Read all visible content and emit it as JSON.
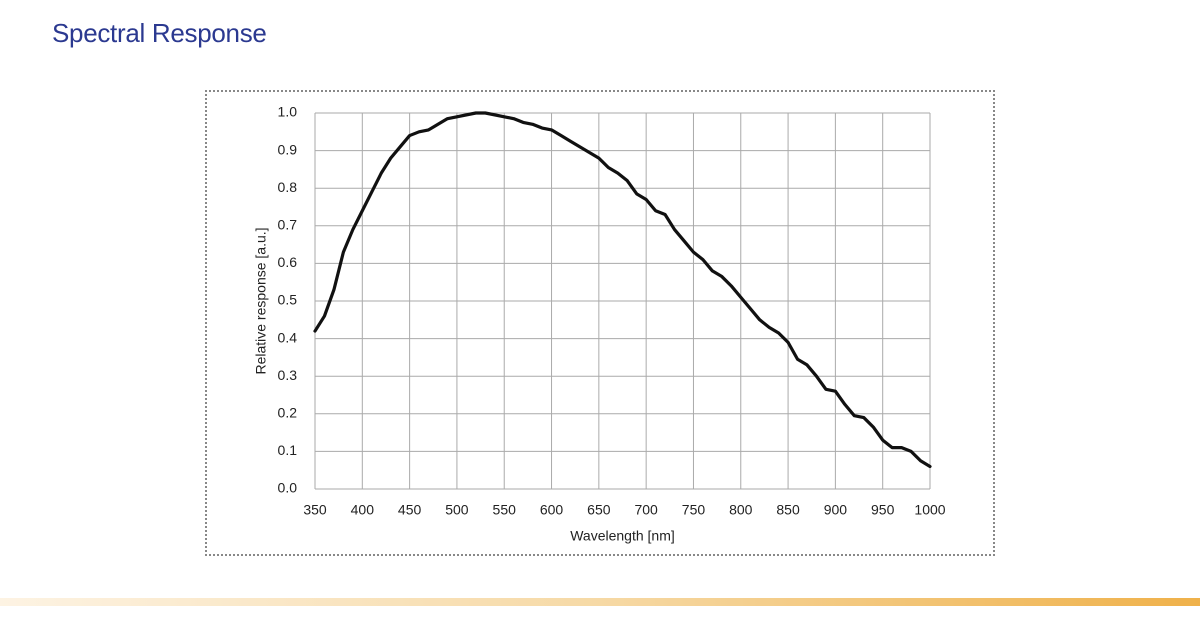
{
  "header": {
    "title": "Spectral Response"
  },
  "chart_data": {
    "type": "line",
    "x_label": "Wavelength [nm]",
    "y_label": "Relative response [a.u.]",
    "x": [
      350,
      360,
      370,
      380,
      390,
      400,
      410,
      420,
      430,
      440,
      450,
      460,
      470,
      480,
      490,
      500,
      510,
      520,
      530,
      540,
      550,
      560,
      570,
      580,
      590,
      600,
      610,
      620,
      630,
      640,
      650,
      660,
      670,
      680,
      690,
      700,
      710,
      720,
      730,
      740,
      750,
      760,
      770,
      780,
      790,
      800,
      810,
      820,
      830,
      840,
      850,
      860,
      870,
      880,
      890,
      900,
      910,
      920,
      930,
      940,
      950,
      960,
      970,
      980,
      990,
      1000
    ],
    "series": [
      {
        "name": null,
        "color": "#111111",
        "values": [
          0.42,
          0.46,
          0.53,
          0.63,
          0.69,
          0.74,
          0.79,
          0.84,
          0.88,
          0.91,
          0.94,
          0.95,
          0.955,
          0.97,
          0.985,
          0.99,
          0.995,
          1.0,
          1.0,
          0.995,
          0.99,
          0.985,
          0.975,
          0.97,
          0.96,
          0.955,
          0.94,
          0.925,
          0.91,
          0.895,
          0.88,
          0.855,
          0.84,
          0.82,
          0.785,
          0.77,
          0.74,
          0.73,
          0.69,
          0.66,
          0.63,
          0.61,
          0.58,
          0.565,
          0.54,
          0.51,
          0.48,
          0.45,
          0.43,
          0.415,
          0.39,
          0.345,
          0.33,
          0.3,
          0.265,
          0.26,
          0.225,
          0.195,
          0.19,
          0.165,
          0.13,
          0.11,
          0.11,
          0.1,
          0.075,
          0.06
        ]
      }
    ],
    "xlim": [
      350,
      1000
    ],
    "xticks": [
      350,
      400,
      450,
      500,
      550,
      600,
      650,
      700,
      750,
      800,
      850,
      900,
      950,
      1000
    ],
    "ylim": [
      0,
      1
    ],
    "yticks": [
      {
        "value": 0,
        "label": "0.0"
      },
      0.1,
      0.2,
      0.3,
      0.4,
      0.5,
      0.6,
      0.7,
      0.8,
      0.9,
      {
        "value": 1,
        "label": "1.0"
      }
    ],
    "grid": true
  }
}
